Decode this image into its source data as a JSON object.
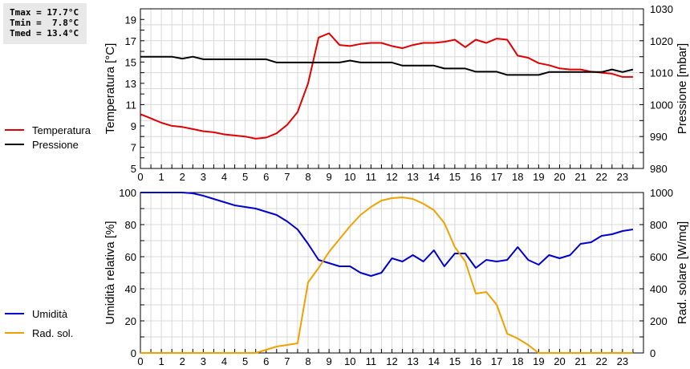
{
  "stats": {
    "tmax": "Tmax = 17.7°C",
    "tmin": "Tmin =  7.8°C",
    "tmed": "Tmed = 13.4°C"
  },
  "legend_top": [
    {
      "label": "Temperatura",
      "color": "#e00000"
    },
    {
      "label": "Pressione",
      "color": "#000000"
    }
  ],
  "legend_bottom": [
    {
      "label": "Umidità",
      "color": "#0000cc"
    },
    {
      "label": "Rad. sol.",
      "color": "#f0a000"
    }
  ],
  "chart_data": [
    {
      "type": "line",
      "title": "",
      "xlabel": "",
      "ylabel": "Temperatura [°C]",
      "y2label": "Pressione [mbar]",
      "xlim": [
        0,
        24
      ],
      "ylim": [
        5,
        20
      ],
      "y2lim": [
        980,
        1030
      ],
      "xticks": [
        "0",
        "1",
        "2",
        "3",
        "4",
        "5",
        "6",
        "7",
        "8",
        "9",
        "10",
        "11",
        "12",
        "13",
        "14",
        "15",
        "16",
        "17",
        "18",
        "19",
        "20",
        "21",
        "22",
        "23"
      ],
      "yticks": [
        "5",
        "7",
        "9",
        "11",
        "13",
        "15",
        "17",
        "19"
      ],
      "y2ticks": [
        "980",
        "990",
        "1000",
        "1010",
        "1020",
        "1030"
      ],
      "grid": true,
      "legend_position": "left",
      "x": [
        0,
        0.5,
        1,
        1.5,
        2,
        2.5,
        3,
        3.5,
        4,
        4.5,
        5,
        5.5,
        6,
        6.5,
        7,
        7.5,
        8,
        8.5,
        9,
        9.5,
        10,
        10.5,
        11,
        11.5,
        12,
        12.5,
        13,
        13.5,
        14,
        14.5,
        15,
        15.5,
        16,
        16.5,
        17,
        17.5,
        18,
        18.5,
        19,
        19.5,
        20,
        20.5,
        21,
        21.5,
        22,
        22.5,
        23,
        23.5
      ],
      "series": [
        {
          "name": "Temperatura",
          "axis": "left",
          "color": "#e00000",
          "values": [
            10.1,
            9.7,
            9.3,
            9.0,
            8.9,
            8.7,
            8.5,
            8.4,
            8.2,
            8.1,
            8.0,
            7.8,
            7.9,
            8.3,
            9.1,
            10.3,
            13.0,
            17.3,
            17.7,
            16.6,
            16.5,
            16.7,
            16.8,
            16.8,
            16.5,
            16.3,
            16.6,
            16.8,
            16.8,
            16.9,
            17.1,
            16.4,
            17.1,
            16.8,
            17.2,
            17.1,
            15.6,
            15.4,
            14.9,
            14.7,
            14.4,
            14.3,
            14.3,
            14.1,
            14.0,
            13.9,
            13.6,
            13.6
          ]
        },
        {
          "name": "Pressione",
          "axis": "right",
          "color": "#000000",
          "values": [
            1015,
            1015,
            1015,
            1015,
            1014.4,
            1015,
            1014.2,
            1014.2,
            1014.2,
            1014.2,
            1014.2,
            1014.2,
            1014.2,
            1013.2,
            1013.2,
            1013.2,
            1013.2,
            1013.2,
            1013.2,
            1013.2,
            1013.8,
            1013.2,
            1013.2,
            1013.2,
            1013.2,
            1012.2,
            1012.2,
            1012.2,
            1012.2,
            1011.3,
            1011.3,
            1011.3,
            1010.3,
            1010.3,
            1010.3,
            1009.3,
            1009.3,
            1009.3,
            1009.3,
            1010.2,
            1010.2,
            1010.2,
            1010.2,
            1010.2,
            1010.2,
            1011,
            1010.2,
            1011
          ]
        }
      ]
    },
    {
      "type": "line",
      "title": "",
      "xlabel": "",
      "ylabel": "Umidità relativa [%]",
      "y2label": "Rad. solare [W/mq]",
      "xlim": [
        0,
        24
      ],
      "ylim": [
        0,
        100
      ],
      "y2lim": [
        0,
        1000
      ],
      "xticks": [
        "0",
        "1",
        "2",
        "3",
        "4",
        "5",
        "6",
        "7",
        "8",
        "9",
        "10",
        "11",
        "12",
        "13",
        "14",
        "15",
        "16",
        "17",
        "18",
        "19",
        "20",
        "21",
        "22",
        "23"
      ],
      "yticks": [
        "0",
        "20",
        "40",
        "60",
        "80",
        "100"
      ],
      "y2ticks": [
        "0",
        "200",
        "400",
        "600",
        "800",
        "1000"
      ],
      "grid": true,
      "legend_position": "left",
      "x": [
        0,
        0.5,
        1,
        1.5,
        2,
        2.5,
        3,
        3.5,
        4,
        4.5,
        5,
        5.5,
        6,
        6.5,
        7,
        7.5,
        8,
        8.5,
        9,
        9.5,
        10,
        10.5,
        11,
        11.5,
        12,
        12.5,
        13,
        13.5,
        14,
        14.5,
        15,
        15.5,
        16,
        16.5,
        17,
        17.5,
        18,
        18.5,
        19,
        19.5,
        20,
        20.5,
        21,
        21.5,
        22,
        22.5,
        23,
        23.5
      ],
      "series": [
        {
          "name": "Umidità",
          "axis": "left",
          "color": "#0000cc",
          "values": [
            100,
            100,
            100,
            100,
            100,
            99.5,
            98,
            96,
            94,
            92,
            91,
            90,
            88,
            86,
            82,
            77,
            68,
            58,
            56,
            54,
            54,
            50,
            48,
            50,
            59,
            57,
            61,
            57,
            64,
            54,
            62,
            62,
            53,
            58,
            57,
            58,
            66,
            58,
            55,
            61,
            59,
            61,
            68,
            69,
            73,
            74,
            76,
            77
          ]
        },
        {
          "name": "Rad. sol.",
          "axis": "right",
          "color": "#f0a000",
          "values": [
            0,
            0,
            0,
            0,
            0,
            0,
            0,
            0,
            0,
            0,
            0,
            0,
            20,
            40,
            50,
            60,
            440,
            530,
            630,
            710,
            790,
            860,
            910,
            950,
            965,
            970,
            960,
            930,
            890,
            810,
            660,
            570,
            370,
            380,
            300,
            120,
            90,
            50,
            0,
            0,
            0,
            0,
            0,
            0,
            0,
            0,
            0,
            0
          ]
        }
      ]
    }
  ]
}
